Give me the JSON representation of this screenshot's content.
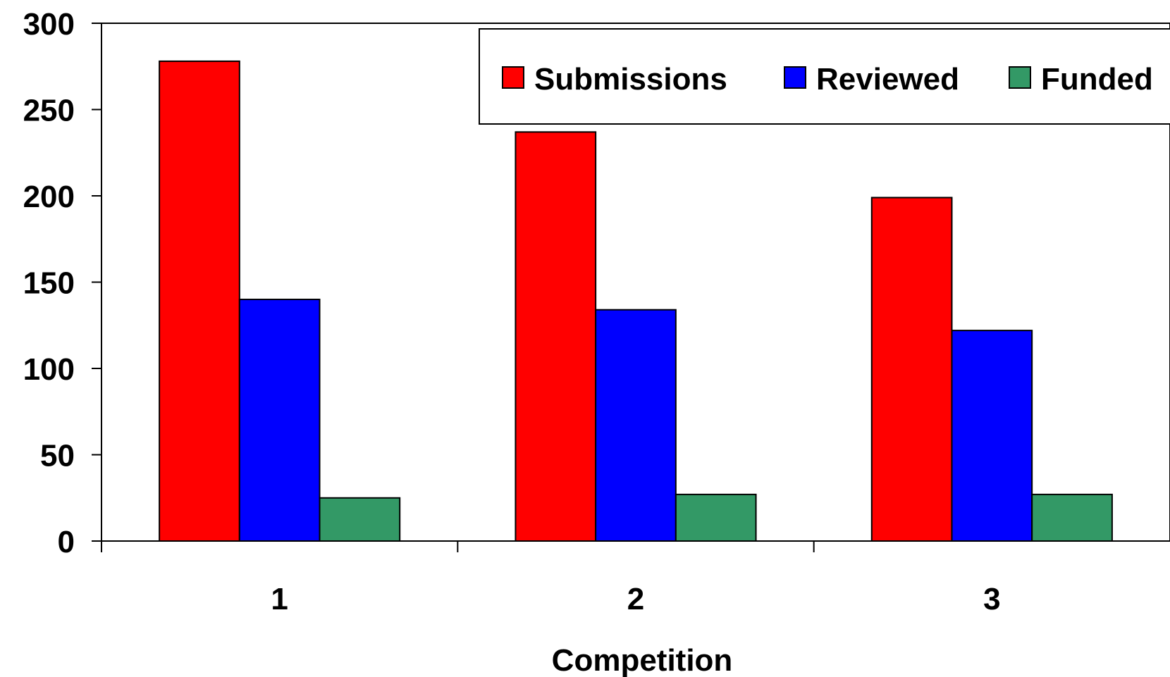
{
  "chart_data": {
    "type": "bar",
    "title": "",
    "xlabel": "Competition",
    "ylabel": "",
    "categories": [
      "1",
      "2",
      "3"
    ],
    "series": [
      {
        "name": "Submissions",
        "color": "#ff0000",
        "values": [
          278,
          237,
          199
        ]
      },
      {
        "name": "Reviewed",
        "color": "#0000ff",
        "values": [
          140,
          134,
          122
        ]
      },
      {
        "name": "Funded",
        "color": "#339966",
        "values": [
          25,
          27,
          27
        ]
      }
    ],
    "ylim": [
      0,
      300
    ],
    "yticks": [
      "0",
      "50",
      "100",
      "150",
      "200",
      "250",
      "300"
    ],
    "grid": false,
    "legend_position": "top-right"
  }
}
